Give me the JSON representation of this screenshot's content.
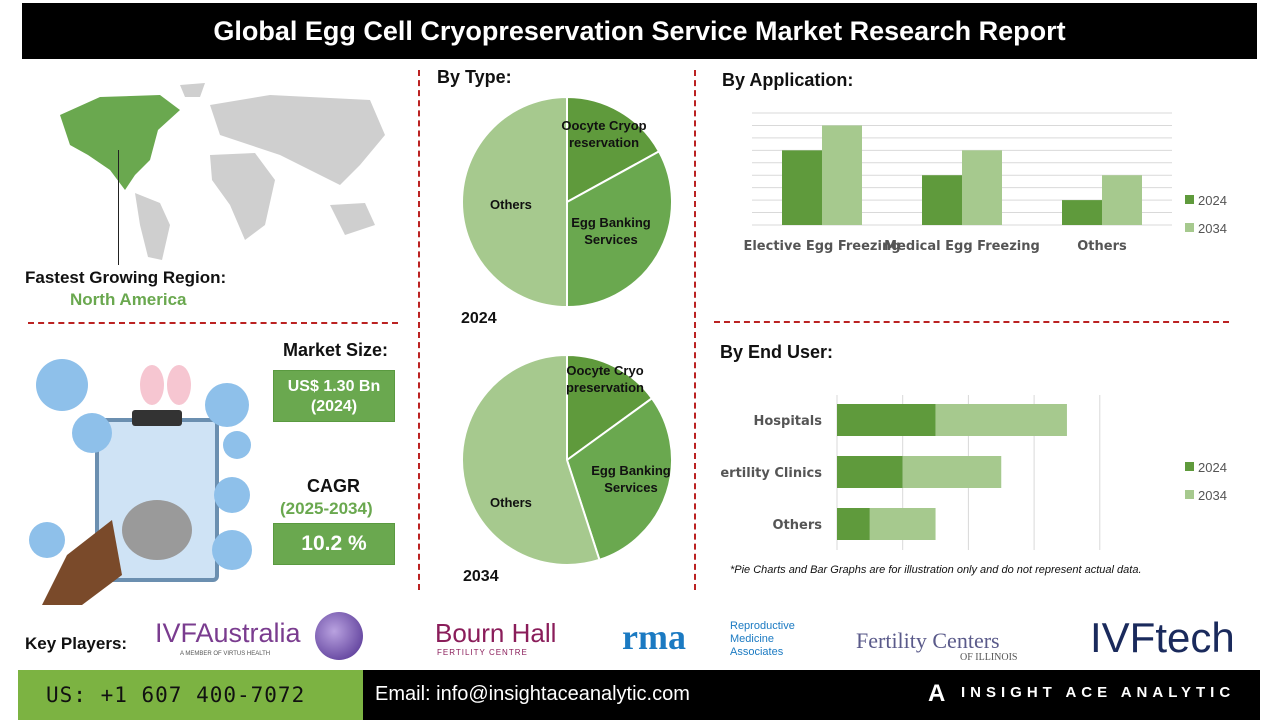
{
  "title": "Global Egg Cell Cryopreservation Service Market Research Report",
  "region": {
    "label": "Fastest Growing Region:",
    "value": "North America"
  },
  "market_size": {
    "label": "Market Size:",
    "value": "US$ 1.30 Bn",
    "year": "(2024)"
  },
  "cagr": {
    "label": "CAGR",
    "period": "(2025-2034)",
    "value": "10.2 %"
  },
  "sections": {
    "type": "By Type:",
    "application": "By Application:",
    "end_user": "By End User:"
  },
  "disclaimer": "*Pie Charts and Bar Graphs are for illustration only and do not represent actual data.",
  "key_players": {
    "label": "Key Players:",
    "logos": [
      "IVFAustralia",
      "A MEMBER OF VIRTUS HEALTH",
      "Bourn Hall",
      "FERTILITY CENTRE",
      "rma",
      "Reproductive",
      "Medicine",
      "Associates",
      "Fertility Centers",
      "OF ILLINOIS",
      "IVFtech"
    ]
  },
  "footer": {
    "phone": "US: +1 607 400-7072",
    "email": "Email: info@insightaceanalytic.com",
    "brand": "INSIGHT ACE ANALYTIC"
  },
  "colors": {
    "dark_green": "#5f9a3c",
    "light_green": "#a6c98e",
    "pie_mid": "#6aa84f",
    "accent_red": "#b22222"
  },
  "chart_data": [
    {
      "type": "pie",
      "title": "2024",
      "labels": [
        "Oocyte Cryopreservation",
        "Egg Banking Services",
        "Others"
      ],
      "values": [
        17,
        33,
        50
      ]
    },
    {
      "type": "pie",
      "title": "2034",
      "labels": [
        "Oocyte Cryopreservation",
        "Egg Banking Services",
        "Others"
      ],
      "values": [
        15,
        30,
        55
      ]
    },
    {
      "type": "bar",
      "categories": [
        "Elective Egg Freezing",
        "Medical Egg Freezing",
        "Others"
      ],
      "series": [
        {
          "name": "2024",
          "values": [
            6,
            4,
            2
          ]
        },
        {
          "name": "2034",
          "values": [
            8,
            6,
            4
          ]
        }
      ],
      "ylim": [
        0,
        9
      ],
      "grid": true,
      "legend": "right"
    },
    {
      "type": "bar",
      "orientation": "horizontal",
      "stacked": true,
      "categories": [
        "Hospitals",
        "Fertility Clinics",
        "Others"
      ],
      "series": [
        {
          "name": "2024",
          "values": [
            1.5,
            1,
            0.5
          ]
        },
        {
          "name": "2034",
          "values": [
            2,
            1.5,
            1
          ]
        }
      ],
      "xlim": [
        0,
        4
      ],
      "grid": true,
      "legend": "right"
    }
  ]
}
